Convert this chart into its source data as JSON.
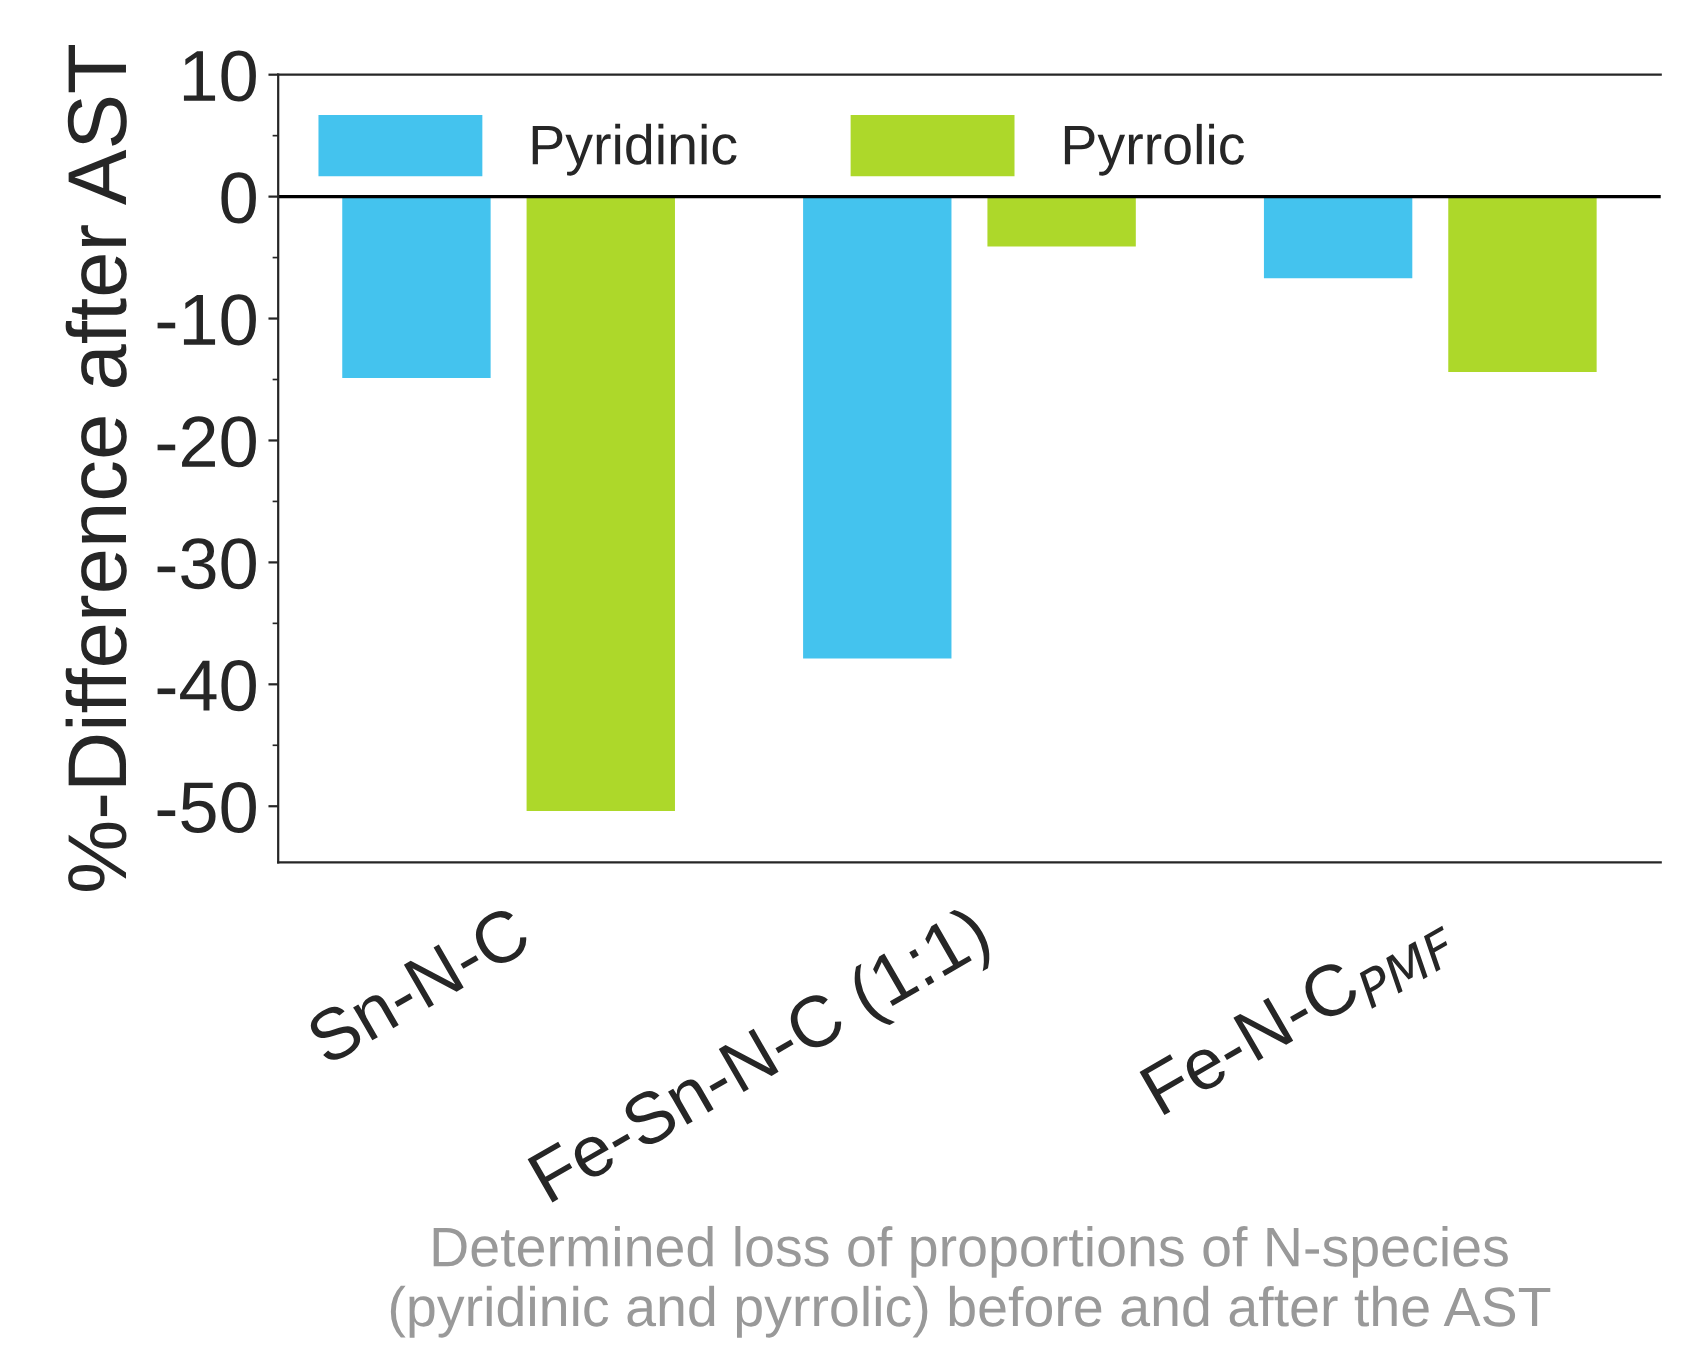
{
  "chart_data": {
    "type": "bar",
    "ylabel": "%-Difference after AST",
    "categories": [
      "Sn-N-C",
      "Fe-Sn-N-C (1:1)",
      "Fe-N-C$_{PMF}$"
    ],
    "series": [
      {
        "name": "Pyridinic",
        "color": "#44c3ee",
        "values": [
          -15,
          -38,
          -6.8
        ]
      },
      {
        "name": "Pyrrolic",
        "color": "#add82a",
        "values": [
          -50.5,
          -4.2,
          -14.5
        ]
      }
    ],
    "ylim": [
      -54.6,
      10
    ],
    "yticks": [
      10,
      0,
      -10,
      -20,
      -30,
      -40,
      -50
    ],
    "ref_lines": [
      {
        "axis": "y",
        "value": 0,
        "color": "#000000"
      }
    ],
    "grid": false,
    "legend": "top left",
    "annotations": [
      "Determined loss of proportions of N-species\n(pyridinic and pyrrolic) before and after the AST"
    ]
  }
}
